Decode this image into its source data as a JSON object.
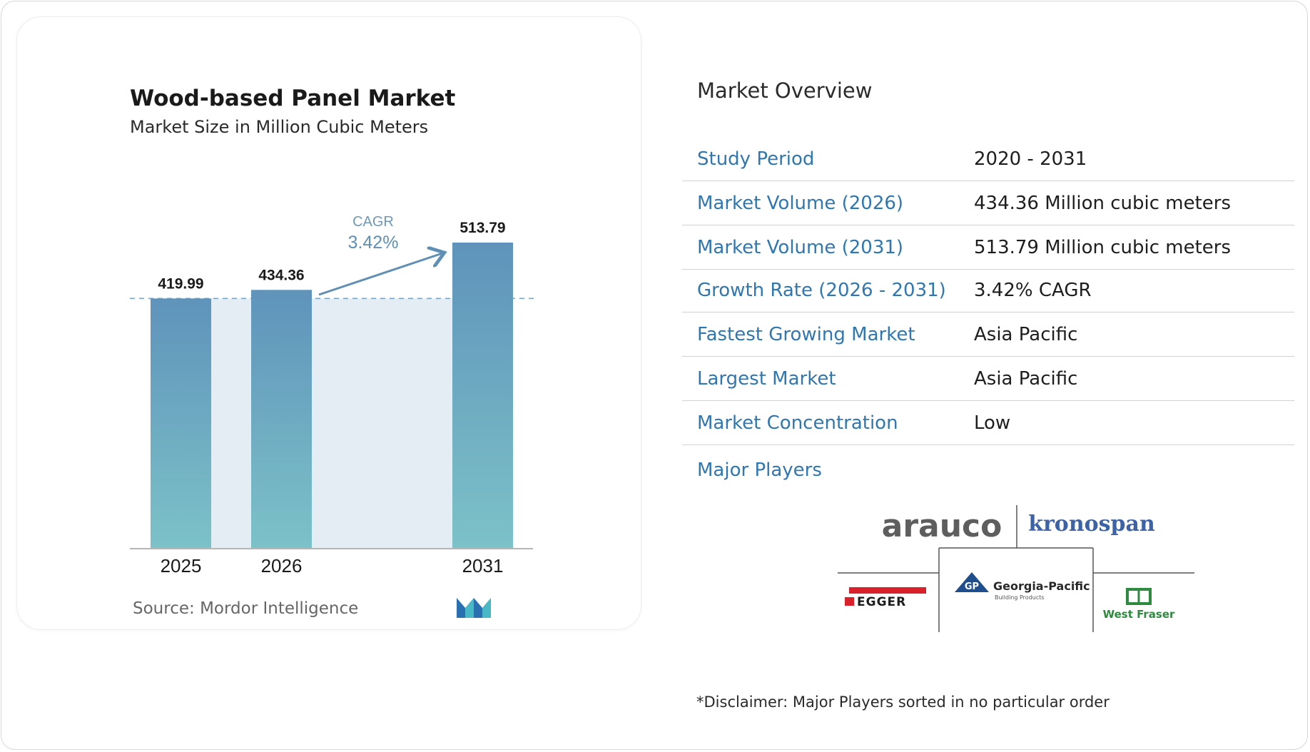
{
  "chart": {
    "title": "Wood-based Panel Market",
    "subtitle": "Market Size in Million Cubic Meters",
    "source_label": "Source:",
    "source_name": "Mordor Intelligence",
    "cagr_label": "CAGR",
    "cagr_value": "3.42%"
  },
  "chart_data": {
    "type": "bar",
    "title": "Wood-based Panel Market",
    "subtitle": "Market Size in Million Cubic Meters",
    "categories": [
      "2025",
      "2026",
      "2031"
    ],
    "values": [
      419.99,
      434.36,
      513.79
    ],
    "value_labels": [
      "419.99",
      "434.36",
      "513.79"
    ],
    "annotation": "CAGR 3.42%",
    "bar_gradient": [
      "#5f93bb",
      "#7cc2c8"
    ],
    "shaded_band_color": "#e4ecf4",
    "reference_line": "dashed, at 2025 level"
  },
  "overview": {
    "title": "Market Overview",
    "rows": [
      {
        "label": "Study Period",
        "value": "2020 - 2031"
      },
      {
        "label": "Market Volume (2026)",
        "value": "434.36 Million cubic meters"
      },
      {
        "label": "Market Volume (2031)",
        "value": "513.79 Million cubic meters"
      },
      {
        "label": "Growth Rate (2026 - 2031)",
        "value": "3.42% CAGR"
      },
      {
        "label": "Fastest Growing Market",
        "value": "Asia Pacific"
      },
      {
        "label": "Largest Market",
        "value": "Asia Pacific"
      },
      {
        "label": "Market Concentration",
        "value": "Low"
      }
    ],
    "major_players_label": "Major Players",
    "players": [
      "arauco",
      "kronospan",
      "EGGER",
      "Georgia-Pacific",
      "West Fraser"
    ],
    "gp_tagline": "Building Products",
    "disclaimer": "*Disclaimer: Major Players sorted in no particular order"
  },
  "colors": {
    "accent_blue": "#2f77b1",
    "arauco_gray": "#5e5e5e",
    "kronospan_blue": "#3c62a8",
    "egger_red": "#d9212b",
    "gp_blue": "#1e4f8c",
    "westfraser_green": "#2e8a3e"
  }
}
